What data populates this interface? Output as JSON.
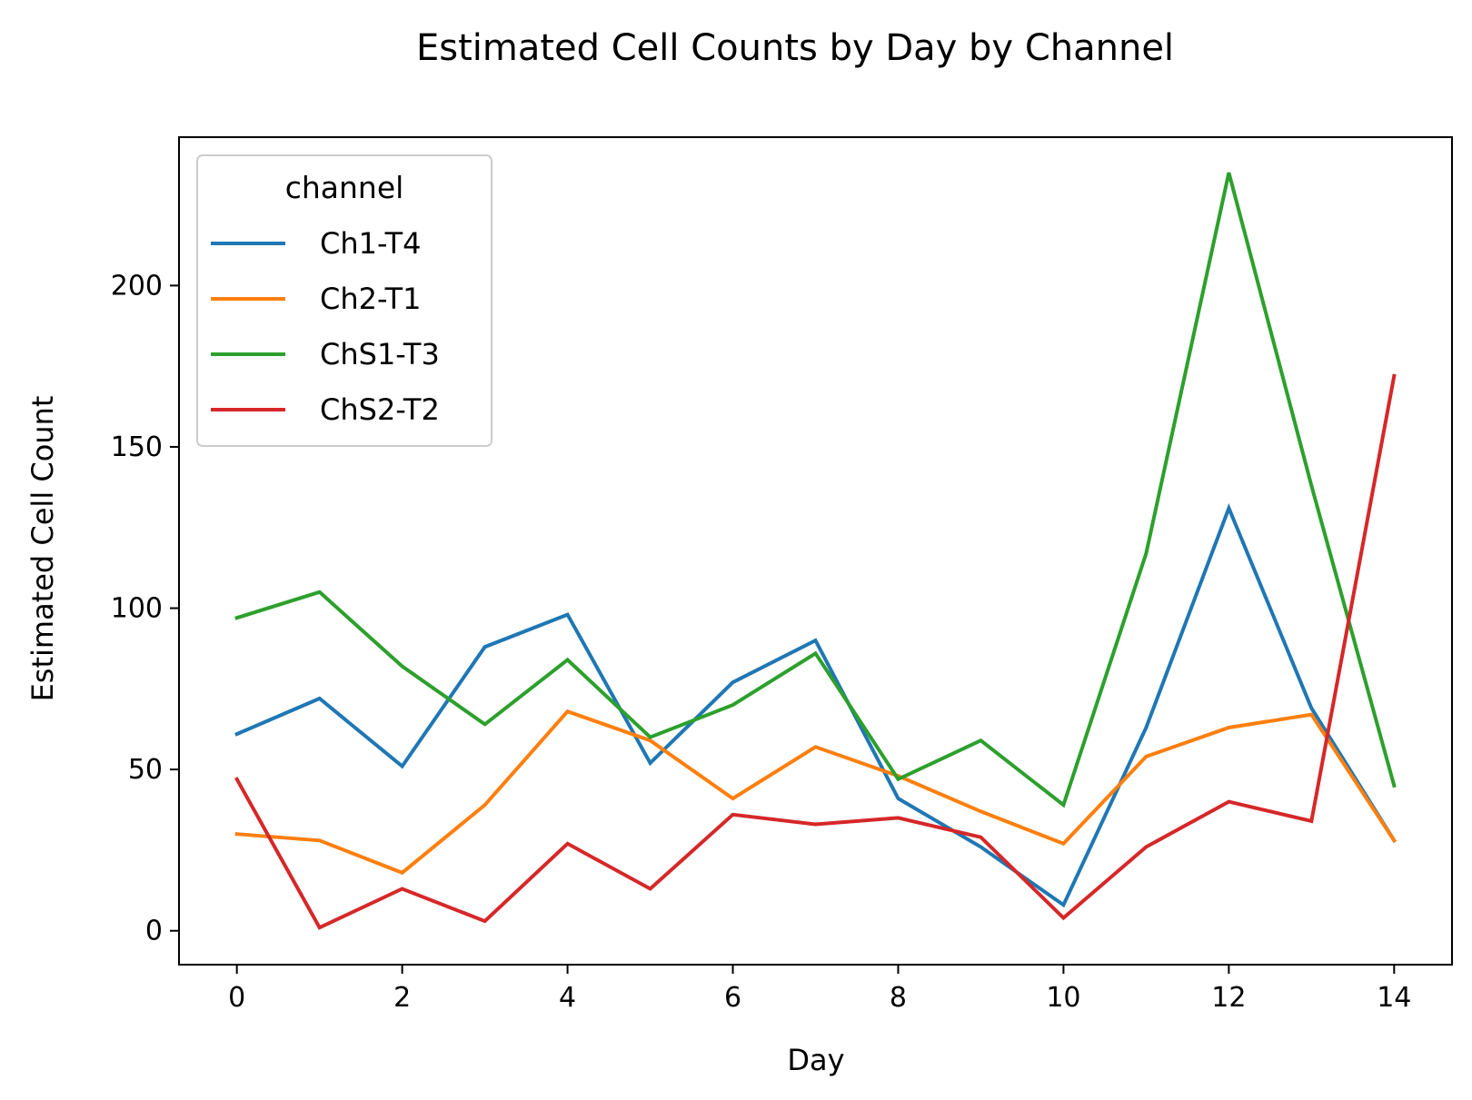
{
  "chart_data": {
    "type": "line",
    "title": "Estimated Cell Counts by Day by Channel",
    "xlabel": "Day",
    "ylabel": "Estimated Cell Count",
    "xlim": [
      -0.7,
      14.7
    ],
    "ylim": [
      -10.5,
      246
    ],
    "xticks": [
      0,
      2,
      4,
      6,
      8,
      10,
      12,
      14
    ],
    "yticks": [
      0,
      50,
      100,
      150,
      200
    ],
    "grid": false,
    "legend": {
      "title": "channel",
      "placement": "top-left"
    },
    "x": [
      0,
      1,
      2,
      3,
      4,
      5,
      6,
      7,
      8,
      9,
      10,
      11,
      12,
      13,
      14
    ],
    "series": [
      {
        "name": "Ch1-T4",
        "color": "#1f77b4",
        "values": [
          61,
          72,
          51,
          88,
          98,
          52,
          77,
          90,
          41,
          26,
          8,
          63,
          131,
          69,
          28
        ]
      },
      {
        "name": "Ch2-T1",
        "color": "#ff7f0e",
        "values": [
          30,
          28,
          18,
          39,
          68,
          59,
          41,
          57,
          48,
          37,
          27,
          54,
          63,
          67,
          28
        ]
      },
      {
        "name": "ChS1-T3",
        "color": "#2ca02c",
        "values": [
          97,
          105,
          82,
          64,
          84,
          60,
          70,
          86,
          47,
          59,
          39,
          117,
          235,
          138,
          45
        ]
      },
      {
        "name": "ChS2-T2",
        "color": "#d62728",
        "values": [
          47,
          1,
          13,
          3,
          27,
          13,
          36,
          33,
          35,
          29,
          4,
          26,
          40,
          34,
          172
        ]
      }
    ]
  }
}
